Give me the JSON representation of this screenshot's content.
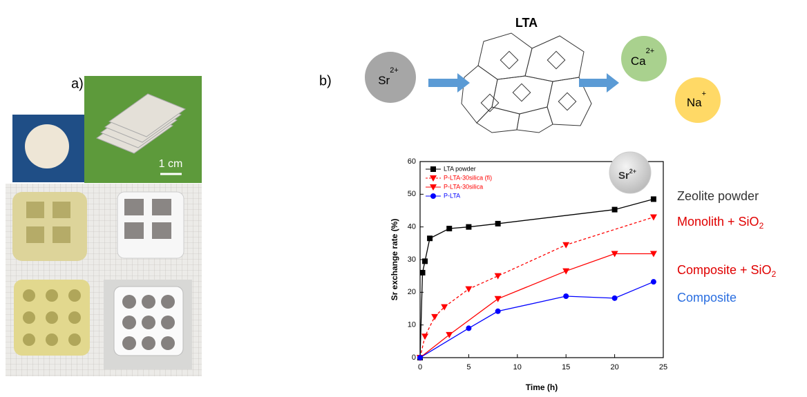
{
  "panel_a": {
    "label": "a)",
    "scale_bar": "1 cm"
  },
  "panel_b": {
    "label": "b)",
    "framework": "LTA",
    "ions": [
      {
        "symbol": "Sr",
        "charge": "2+"
      },
      {
        "symbol": "Ca",
        "charge": "2+"
      },
      {
        "symbol": "Na",
        "charge": "+"
      }
    ]
  },
  "chart_data": {
    "type": "line",
    "x_label": "Time (h)",
    "y_label": "Sr exchange rate (%)",
    "xlim": [
      0,
      25
    ],
    "xticks": [
      0,
      5,
      10,
      15,
      20,
      25
    ],
    "ylim": [
      0,
      60
    ],
    "yticks": [
      0,
      10,
      20,
      30,
      40,
      50,
      60
    ],
    "legend": "upper left",
    "badge": {
      "symbol": "Sr",
      "charge": "2+"
    },
    "series": [
      {
        "name": "LTA powder",
        "color": "#000000",
        "marker": "square",
        "line_style": "solid",
        "x": [
          0,
          0.25,
          0.5,
          1,
          3,
          5,
          8,
          20,
          24
        ],
        "values": [
          0,
          26,
          29.5,
          36.5,
          39.5,
          40,
          41,
          45.3,
          48.5
        ]
      },
      {
        "name": "P-LTA-30silica (fi)",
        "color": "#ff0000",
        "marker": "triangle-down",
        "line_style": "dashed",
        "x": [
          0,
          0.5,
          1.5,
          2.5,
          5,
          8,
          15,
          24
        ],
        "values": [
          0,
          6.5,
          12.5,
          15.5,
          21,
          25,
          34.5,
          43
        ]
      },
      {
        "name": "P-LTA-30silica",
        "color": "#ff0000",
        "marker": "triangle-down",
        "line_style": "solid",
        "x": [
          0,
          3,
          8,
          15,
          20,
          24
        ],
        "values": [
          0,
          7,
          18,
          26.5,
          31.8,
          31.8
        ]
      },
      {
        "name": "P-LTA",
        "color": "#0000ff",
        "marker": "circle",
        "line_style": "solid",
        "x": [
          0,
          5,
          8,
          15,
          20,
          24
        ],
        "values": [
          0,
          9,
          14.2,
          18.8,
          18.2,
          23.2
        ]
      }
    ],
    "annotations": [
      {
        "text": "Zeolite powder",
        "color": "#333333"
      },
      {
        "text": "Monolith + SiO",
        "sub": "2",
        "color": "#e00000"
      },
      {
        "text": "Composite + SiO",
        "sub": "2",
        "color": "#e00000"
      },
      {
        "text": "Composite",
        "color": "#2a6ee0"
      }
    ]
  }
}
